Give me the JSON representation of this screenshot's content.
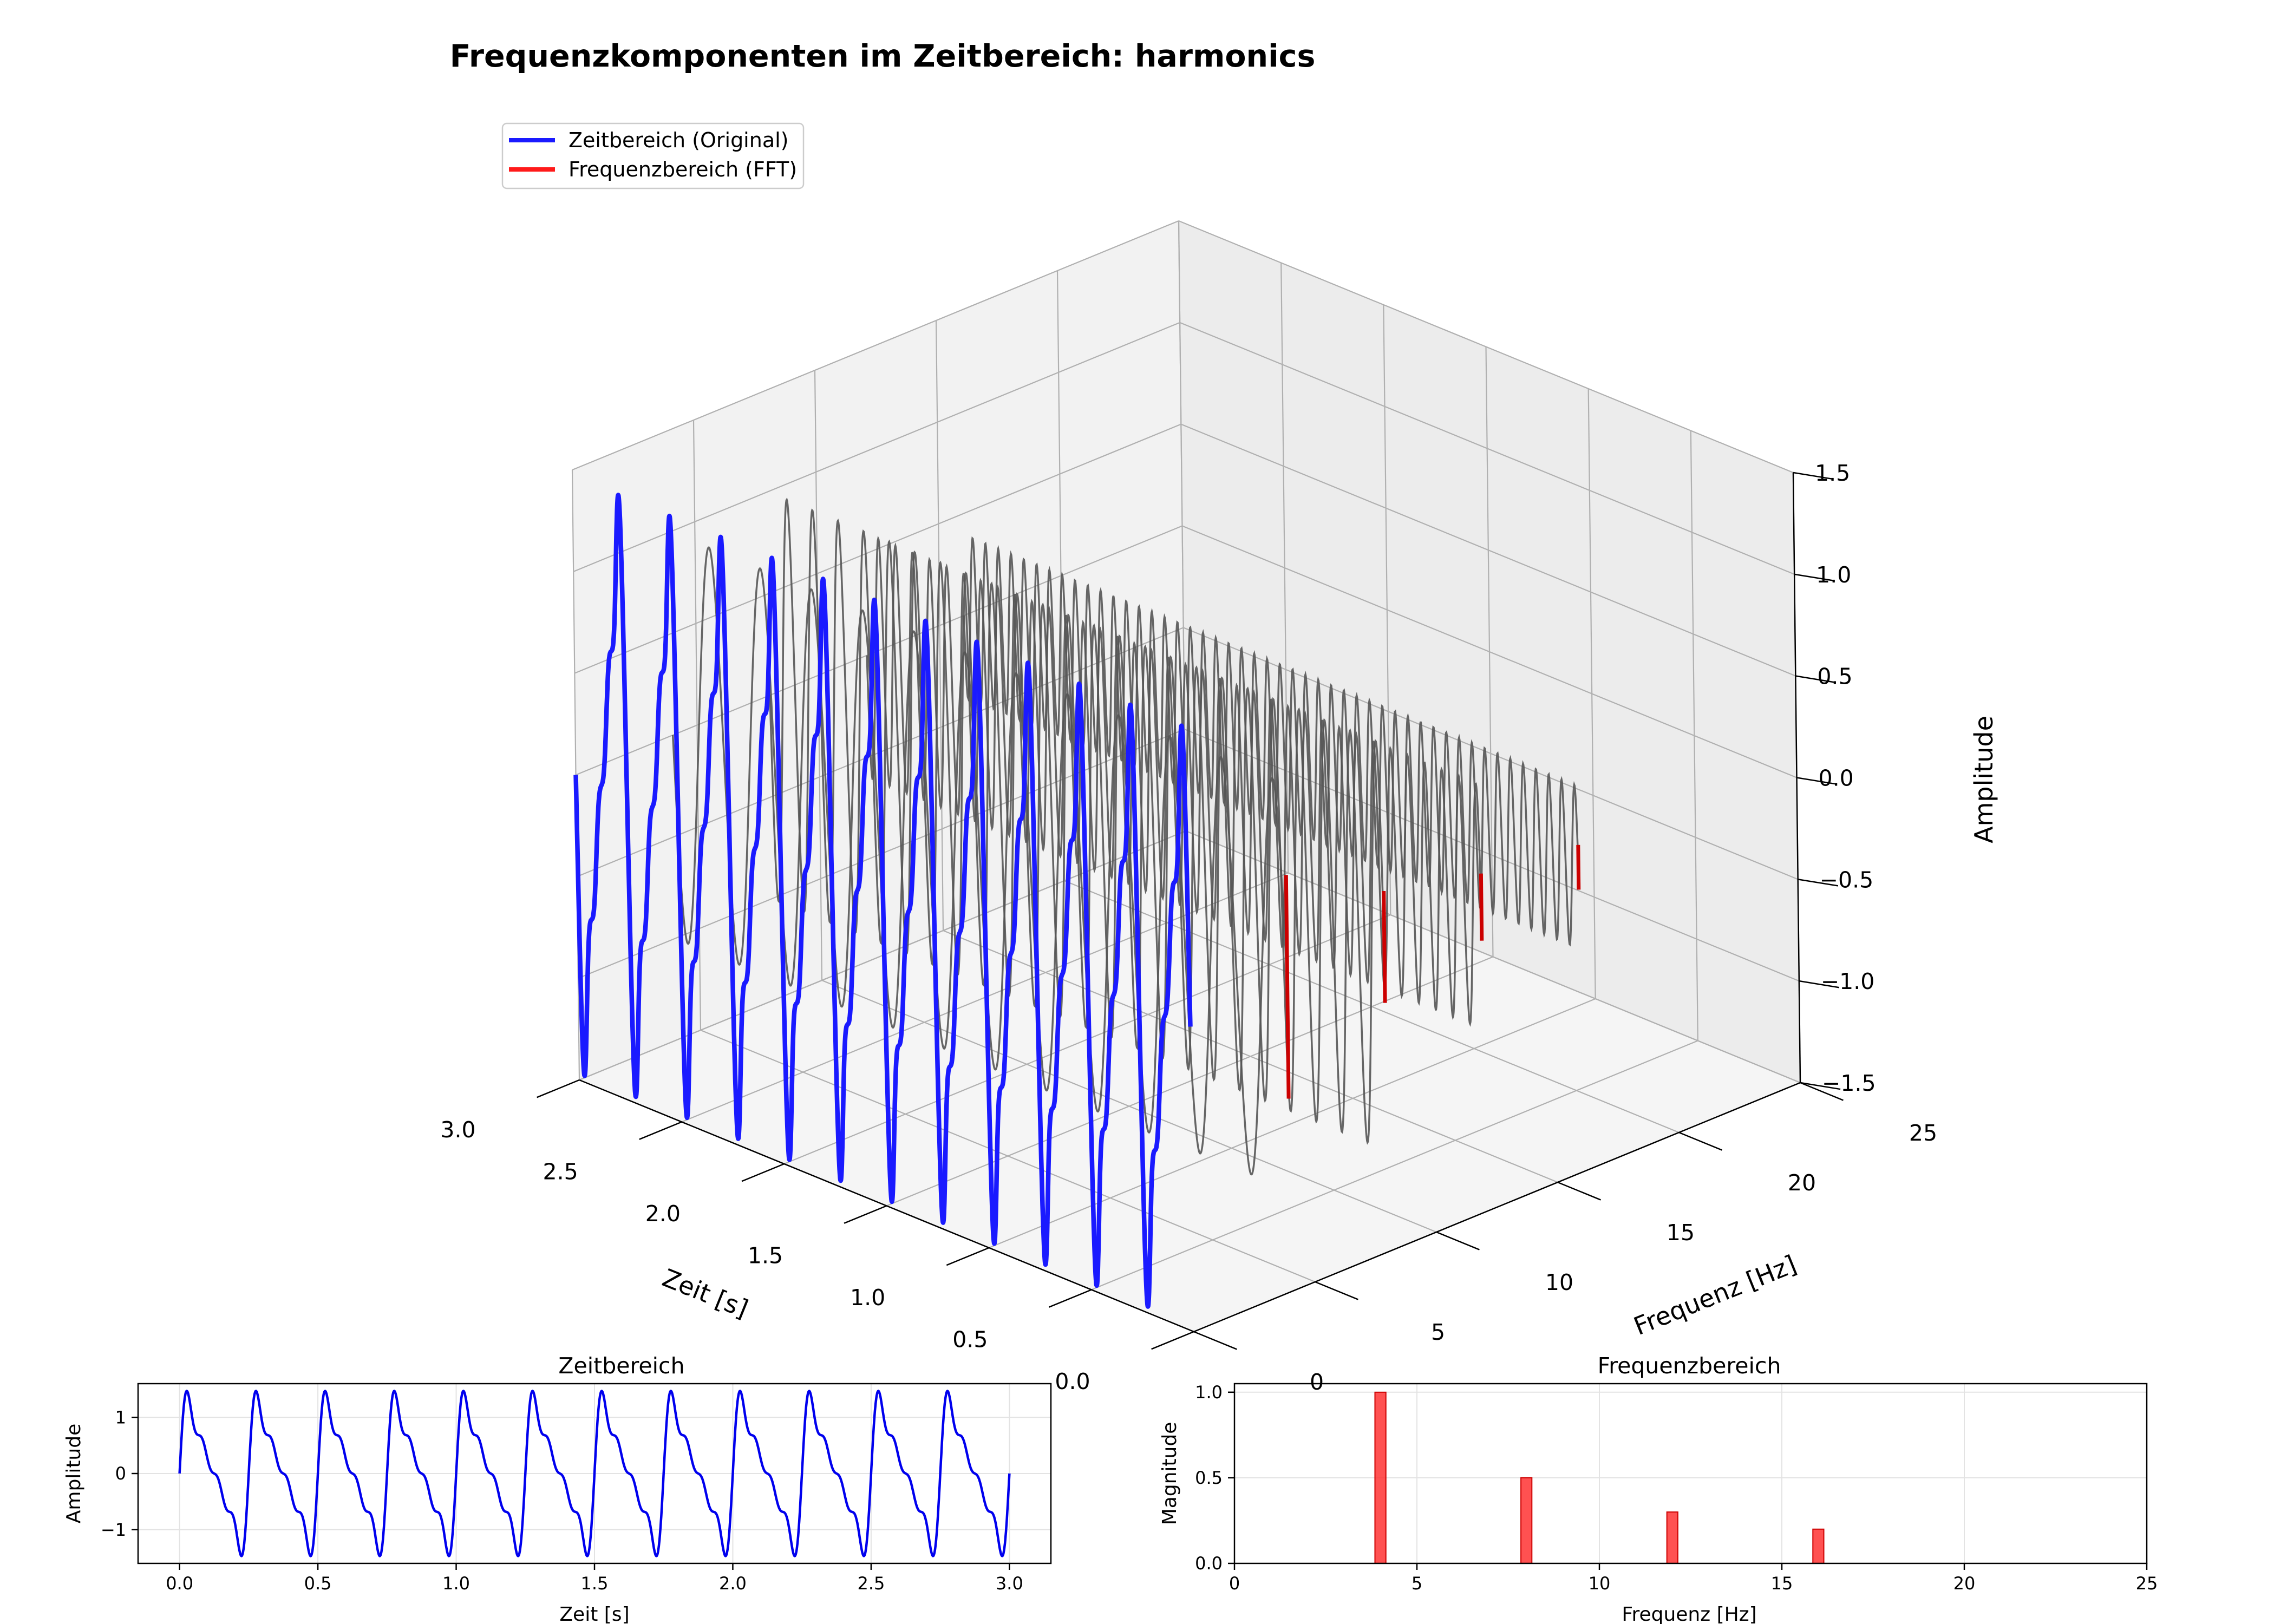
{
  "chart_data": [
    {
      "type": "line",
      "subtype": "3d",
      "title": "Frequenzkomponenten im Zeitbereich: harmonics",
      "xlabel": "Zeit [s]",
      "ylabel": "Frequenz [Hz]",
      "zlabel": "Amplitude",
      "xlim": [
        0,
        3
      ],
      "ylim": [
        0,
        25
      ],
      "zlim": [
        -1.5,
        1.5
      ],
      "x_ticks": [
        "0.0",
        "0.5",
        "1.0",
        "1.5",
        "2.0",
        "2.5",
        "3.0"
      ],
      "y_ticks": [
        "0",
        "5",
        "10",
        "15",
        "20",
        "25"
      ],
      "z_ticks": [
        "−1.5",
        "−1.0",
        "−0.5",
        "0.0",
        "0.5",
        "1.0",
        "1.5"
      ],
      "legend": {
        "position": "upper-left",
        "entries": [
          {
            "label": "Zeitbereich (Original)",
            "color": "#1a1aff"
          },
          {
            "label": "Frequenzbereich (FFT)",
            "color": "#ff1a1a"
          }
        ]
      },
      "signal": {
        "fundamental_hz": 4,
        "harmonics": [
          {
            "freq": 4,
            "amp": 1.0
          },
          {
            "freq": 8,
            "amp": 0.5
          },
          {
            "freq": 12,
            "amp": 0.3
          },
          {
            "freq": 16,
            "amp": 0.2
          }
        ]
      },
      "component_curves_frequency_hz": [
        4,
        8,
        12,
        16
      ],
      "fft_bars": [
        {
          "freq": 4,
          "magnitude": 1.0
        },
        {
          "freq": 8,
          "magnitude": 0.5
        },
        {
          "freq": 12,
          "magnitude": 0.3
        },
        {
          "freq": 16,
          "magnitude": 0.2
        }
      ],
      "colors": {
        "time_signal": "#1a1aff",
        "component": "#555555",
        "fft": "#cc0000"
      },
      "grid": true
    },
    {
      "type": "line",
      "title": "Zeitbereich",
      "xlabel": "Zeit [s]",
      "ylabel": "Amplitude",
      "xlim": [
        -0.15,
        3.15
      ],
      "ylim": [
        -1.6,
        1.6
      ],
      "x_ticks": [
        "0.0",
        "0.5",
        "1.0",
        "1.5",
        "2.0",
        "2.5",
        "3.0"
      ],
      "y_ticks": [
        "−1",
        "0",
        "1"
      ],
      "series": [
        {
          "fundamental_hz": 4,
          "harmonics": [
            {
              "freq": 4,
              "amp": 1.0
            },
            {
              "freq": 8,
              "amp": 0.5
            },
            {
              "freq": 12,
              "amp": 0.3
            },
            {
              "freq": 16,
              "amp": 0.2
            }
          ],
          "t_range": [
            0,
            3
          ],
          "color": "#0000ee"
        }
      ],
      "grid": true
    },
    {
      "type": "bar",
      "title": "Frequenzbereich",
      "xlabel": "Frequenz [Hz]",
      "ylabel": "Magnitude",
      "xlim": [
        0,
        25
      ],
      "ylim": [
        0,
        1.05
      ],
      "x_ticks": [
        "0",
        "5",
        "10",
        "15",
        "20",
        "25"
      ],
      "y_ticks": [
        "0.0",
        "0.5",
        "1.0"
      ],
      "categories": [
        4,
        8,
        12,
        16
      ],
      "values": [
        1.0,
        0.5,
        0.3,
        0.2
      ],
      "color": "#ff3333",
      "grid": true
    }
  ]
}
